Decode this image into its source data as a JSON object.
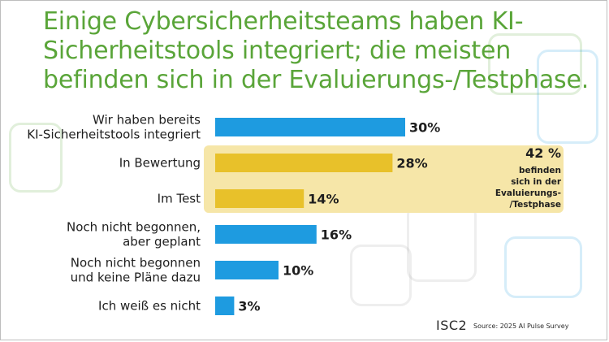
{
  "title": "Einige Cybersicherheitsteams haben KI-Sicherheitstools integriert; die meisten befinden sich in der Evaluierungs-/Testphase.",
  "colors": {
    "title": "#5aa539",
    "bar_blue": "#1e9be0",
    "bar_yellow": "#e8c12a",
    "highlight_bg": "#f6e6a8"
  },
  "chart_data": {
    "type": "bar",
    "orientation": "horizontal",
    "title": "Einige Cybersicherheitsteams haben KI-Sicherheitstools integriert; die meisten befinden sich in der Evaluierungs-/Testphase.",
    "xlim": [
      0,
      100
    ],
    "categories": [
      [
        "Wir haben bereits",
        "KI-Sicherheitstools integriert"
      ],
      [
        "In Bewertung"
      ],
      [
        "Im Test"
      ],
      [
        "Noch nicht begonnen,",
        "aber geplant"
      ],
      [
        "Noch nicht begonnen",
        "und keine Pläne dazu"
      ],
      [
        "Ich weiß es nicht"
      ]
    ],
    "values": [
      30,
      28,
      14,
      16,
      10,
      3
    ],
    "value_labels": [
      "30%",
      "28%",
      "14%",
      "16%",
      "10%",
      "3%"
    ],
    "highlighted": [
      false,
      true,
      true,
      false,
      false,
      false
    ]
  },
  "callout": {
    "percent": "42 %",
    "lines": [
      "befinden",
      "sich in der",
      "Evaluierungs-",
      "/Testphase"
    ]
  },
  "logo": "ISC2",
  "source": "Source: 2025 AI Pulse Survey"
}
